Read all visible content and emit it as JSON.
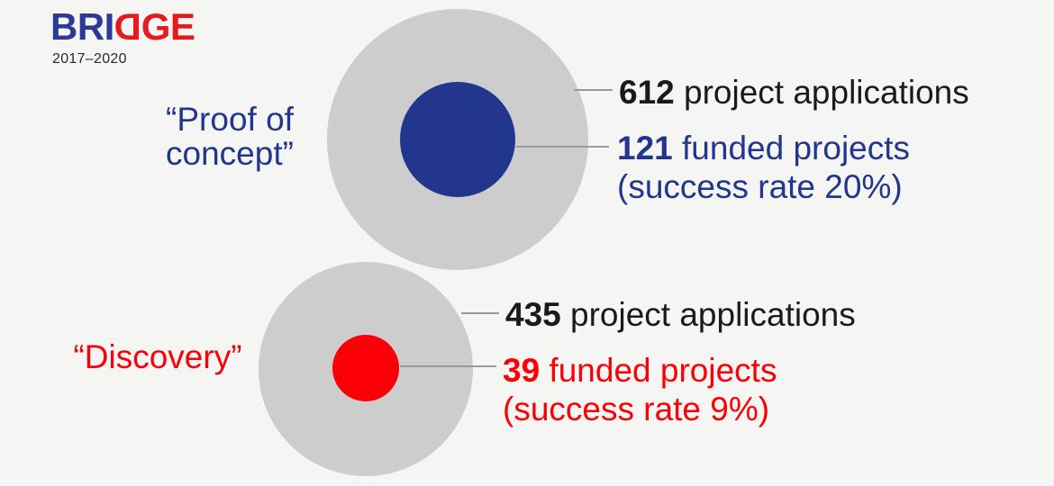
{
  "logo": {
    "text_blue": "BRI",
    "text_mirrored": "D",
    "text_red": "GE",
    "years": "2017–2020",
    "color_blue": "#2b3a96",
    "color_red": "#e8191c"
  },
  "colors": {
    "background": "#f5f5f4",
    "outer_circle": "#cdcdcd",
    "connector_line": "#9b9b9b",
    "applications_text": "#1a1a1a",
    "proof_accent": "#21368c",
    "discovery_accent": "#fb0007"
  },
  "groups": [
    {
      "label": "“Proof of\nconcept”",
      "applications_value": "612",
      "applications_label": "project applications",
      "funded_value": "121",
      "funded_label": "funded projects",
      "success_note": "(success rate 20%)"
    },
    {
      "label": "“Discovery”",
      "applications_value": "435",
      "applications_label": "project applications",
      "funded_value": "39",
      "funded_label": "funded projects",
      "success_note": "(success rate 9%)"
    }
  ],
  "chart_data": {
    "type": "bubble",
    "title": "BRIDGE 2017–2020",
    "encoding": "circle area proportional to number of projects; outer gray circle = applications, inner colored circle = funded projects",
    "legend_position": "right-of-bubbles",
    "series": [
      {
        "name": "“Proof of concept”",
        "project_applications": 612,
        "funded_projects": 121,
        "success_rate_pct": 20,
        "inner_color": "#21368c"
      },
      {
        "name": "“Discovery”",
        "project_applications": 435,
        "funded_projects": 39,
        "success_rate_pct": 9,
        "inner_color": "#fb0007"
      }
    ]
  }
}
